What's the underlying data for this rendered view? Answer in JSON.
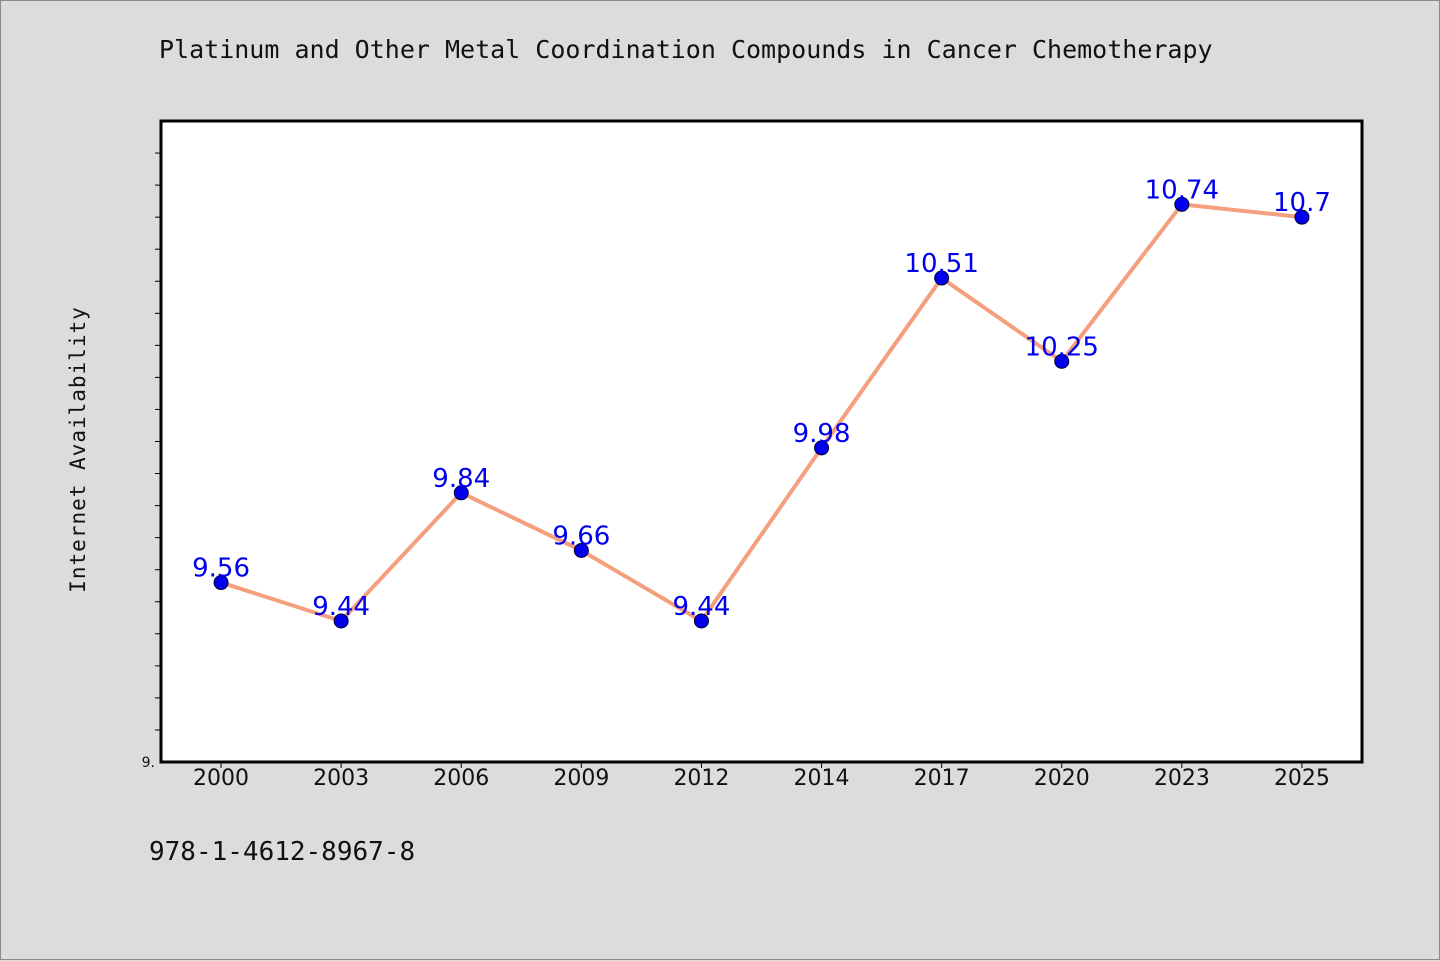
{
  "title": "Platinum and Other Metal Coordination Compounds in Cancer Chemotherapy",
  "footer_text": "978-1-4612-8967-8",
  "colors": {
    "background": "#dcdcdc",
    "plot_background": "#ffffff",
    "line": "#f4a07e",
    "marker": "#0000ee",
    "label": "#0000ee"
  },
  "chart_data": {
    "type": "line",
    "title": "Platinum and Other Metal Coordination Compounds in Cancer Chemotherapy",
    "xlabel": "",
    "ylabel": "Internet Availability",
    "categories": [
      "2000",
      "2003",
      "2006",
      "2009",
      "2012",
      "2014",
      "2017",
      "2020",
      "2023",
      "2025"
    ],
    "series": [
      {
        "values": [
          9.56,
          9.44,
          9.84,
          9.66,
          9.44,
          9.98,
          10.51,
          10.25,
          10.74,
          10.7
        ],
        "data_labels": [
          "9.56",
          "9.44",
          "9.84",
          "9.66",
          "9.44",
          "9.98",
          "10.51",
          "10.25",
          "10.74",
          "10.7"
        ]
      }
    ],
    "ylim": [
      9.0,
      11.0
    ],
    "y_tick_labels": [
      "9."
    ],
    "grid": false,
    "legend": "none"
  }
}
